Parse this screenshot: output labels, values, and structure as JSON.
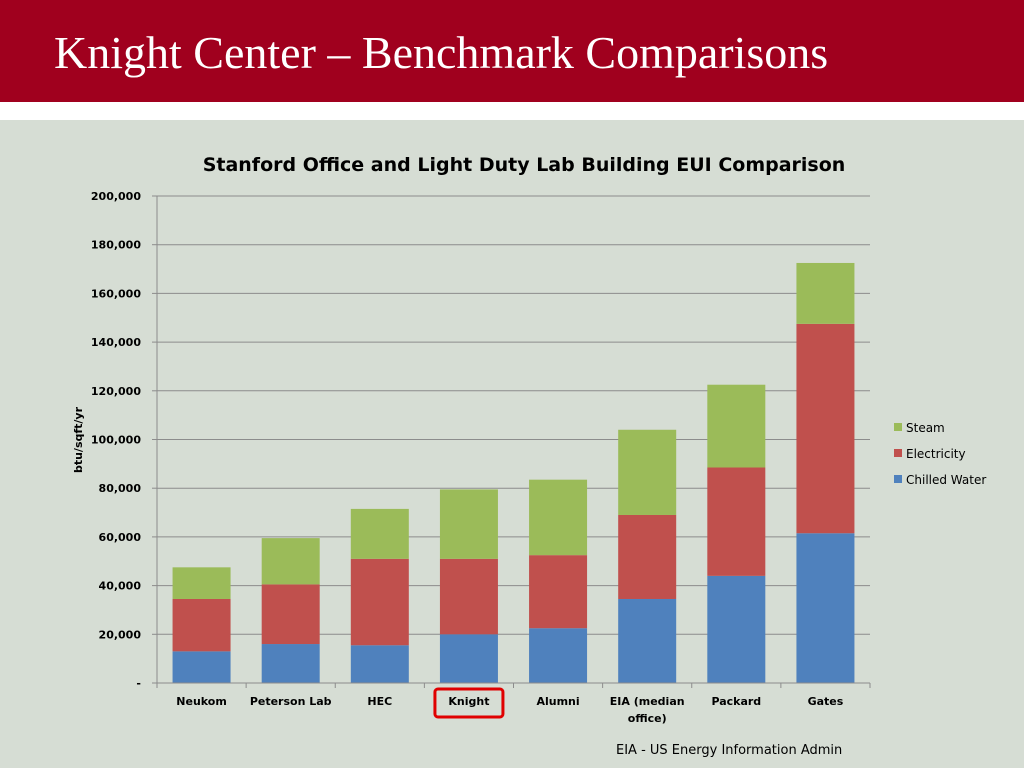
{
  "slide": {
    "title": "Knight Center – Benchmark Comparisons",
    "footnote": "EIA - US Energy Information Admin",
    "highlighted_category": "Knight"
  },
  "colors": {
    "header": "#a0001e",
    "background": "#d6ddd4",
    "Chilled Water": "#4f81bd",
    "Electricity": "#c0504d",
    "Steam": "#9bbb59",
    "highlight": "#e00000"
  },
  "chart_data": {
    "type": "bar",
    "stacked": true,
    "title": "Stanford Office and Light Duty Lab Building EUI Comparison",
    "xlabel": "",
    "ylabel": "btu/sqft/yr",
    "ylim": [
      0,
      200000
    ],
    "yticks": [
      0,
      20000,
      40000,
      60000,
      80000,
      100000,
      120000,
      140000,
      160000,
      180000,
      200000
    ],
    "ytick_labels": [
      "-",
      "20,000",
      "40,000",
      "60,000",
      "80,000",
      "100,000",
      "120,000",
      "140,000",
      "160,000",
      "180,000",
      "200,000"
    ],
    "grid": true,
    "legend_position": "right",
    "categories": [
      "Neukom",
      "Peterson Lab",
      "HEC",
      "Knight",
      "Alumni",
      "EIA (median office)",
      "Packard",
      "Gates"
    ],
    "series": [
      {
        "name": "Chilled Water",
        "values": [
          13000,
          16000,
          15500,
          20000,
          22500,
          34500,
          44000,
          61500
        ]
      },
      {
        "name": "Electricity",
        "values": [
          21500,
          24500,
          35500,
          31000,
          30000,
          34500,
          44500,
          86000
        ]
      },
      {
        "name": "Steam",
        "values": [
          13000,
          19000,
          20500,
          28500,
          31000,
          35000,
          34000,
          25000
        ]
      }
    ],
    "legend_order": [
      "Steam",
      "Electricity",
      "Chilled Water"
    ]
  }
}
